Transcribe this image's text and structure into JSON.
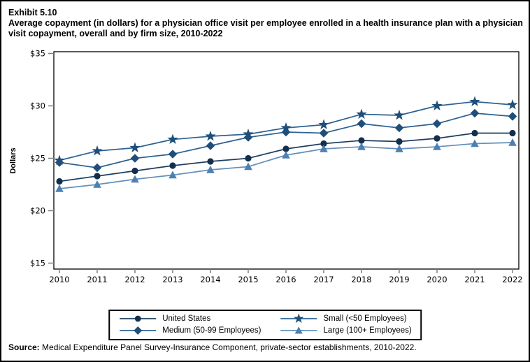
{
  "header": {
    "exhibit": "Exhibit 5.10",
    "title": "Average copayment (in dollars) for a physician office visit per employee enrolled in a health insurance plan with a physician visit copayment, overall and by firm size, 2010-2022"
  },
  "chart_data": {
    "type": "line",
    "title": "Average copayment (in dollars) for a physician office visit per employee enrolled in a health insurance plan with a physician visit copayment, overall and by firm size, 2010-2022",
    "xlabel": "",
    "ylabel": "Dollars",
    "ylim": [
      15,
      35
    ],
    "ytick_interval": 5,
    "ytick_prefix": "$",
    "grid": false,
    "legend_position": "bottom",
    "categories": [
      "2010",
      "2011",
      "2012",
      "2013",
      "2014",
      "2015",
      "2016",
      "2017",
      "2018",
      "2019",
      "2020",
      "2021",
      "2022"
    ],
    "series": [
      {
        "name": "United States",
        "marker": "circle",
        "marker_color": "#122f4d",
        "line_color": "#1e3e5f",
        "values": [
          22.8,
          23.3,
          23.8,
          24.3,
          24.7,
          25.0,
          25.9,
          26.4,
          26.7,
          26.6,
          26.9,
          27.4,
          27.4
        ]
      },
      {
        "name": "Small (<50 Employees)",
        "marker": "star",
        "marker_color": "#1f4e79",
        "line_color": "#2e6292",
        "values": [
          24.8,
          25.7,
          26.0,
          26.8,
          27.1,
          27.3,
          27.9,
          28.2,
          29.2,
          29.1,
          30.0,
          30.4,
          30.1
        ]
      },
      {
        "name": "Medium (50-99 Employees)",
        "marker": "diamond",
        "marker_color": "#1f4e79",
        "line_color": "#2e6292",
        "values": [
          24.6,
          24.1,
          25.0,
          25.4,
          26.2,
          27.0,
          27.5,
          27.4,
          28.3,
          27.9,
          28.3,
          29.3,
          29.0
        ]
      },
      {
        "name": "Large (100+ Employees)",
        "marker": "triangle",
        "marker_color": "#4d80b2",
        "line_color": "#6290bd",
        "values": [
          22.1,
          22.5,
          23.0,
          23.4,
          23.9,
          24.2,
          25.3,
          25.9,
          26.1,
          25.9,
          26.1,
          26.4,
          26.5
        ]
      }
    ],
    "axis_color": "#000000",
    "tick_color": "#7f7f7f"
  },
  "footer": {
    "source_label": "Source:",
    "source_text": "Medical Expenditure Panel Survey-Insurance Component, private-sector establishments, 2010-2022."
  }
}
